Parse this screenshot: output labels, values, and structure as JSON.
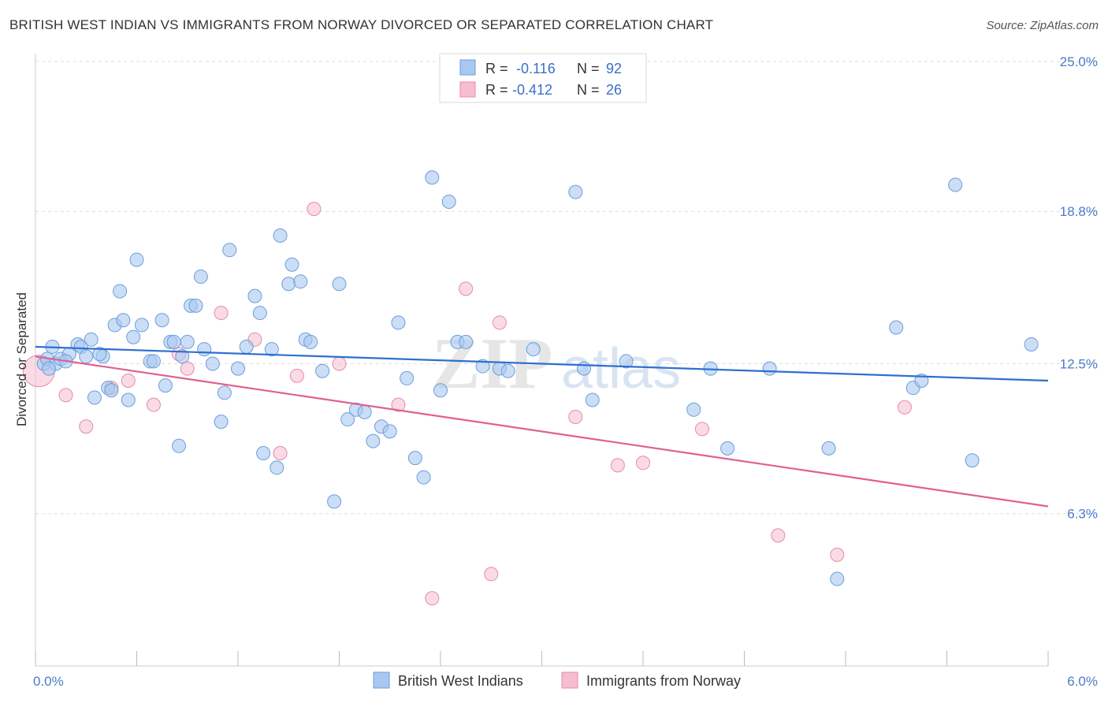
{
  "header": {
    "title": "BRITISH WEST INDIAN VS IMMIGRANTS FROM NORWAY DIVORCED OR SEPARATED CORRELATION CHART",
    "source": "Source: ZipAtlas.com"
  },
  "watermark": {
    "zip": "ZIP",
    "atlas": "atlas"
  },
  "colors": {
    "series1_fill": "#a9c8f0",
    "series1_stroke": "#6a9edc",
    "series1_line": "#2f6fd0",
    "series2_fill": "#f6bdd0",
    "series2_stroke": "#e58aaa",
    "series2_line": "#e0608e",
    "tick_text": "#4a7cc7",
    "grid": "#dddddd"
  },
  "chart_data": {
    "type": "scatter",
    "title": "BRITISH WEST INDIAN VS IMMIGRANTS FROM NORWAY DIVORCED OR SEPARATED CORRELATION CHART",
    "ylabel": "Divorced or Separated",
    "xlabel": "",
    "xlim": [
      0,
      6.0
    ],
    "ylim": [
      0,
      25.0
    ],
    "x_tick_labels": [
      {
        "value": 0,
        "label": "0.0%"
      },
      {
        "value": 6.0,
        "label": "6.0%"
      }
    ],
    "y_tick_labels": [
      {
        "value": 6.3,
        "label": "6.3%"
      },
      {
        "value": 12.5,
        "label": "12.5%"
      },
      {
        "value": 18.8,
        "label": "18.8%"
      },
      {
        "value": 25.0,
        "label": "25.0%"
      }
    ],
    "grid": true,
    "legend": {
      "placement": "top-center",
      "entries": [
        {
          "r_label": "R =",
          "r_value": "-0.116",
          "n_label": "N =",
          "n_value": "92"
        },
        {
          "r_label": "R =",
          "r_value": "-0.412",
          "n_label": "N =",
          "n_value": "26"
        }
      ]
    },
    "bottom_legend": [
      "British West Indians",
      "Immigrants from Norway"
    ],
    "series": [
      {
        "name": "British West Indians",
        "trend": {
          "x": [
            0,
            6.0
          ],
          "y": [
            13.2,
            11.8
          ]
        },
        "points": [
          [
            0.05,
            12.5
          ],
          [
            0.07,
            12.7
          ],
          [
            0.1,
            13.2
          ],
          [
            0.12,
            12.5
          ],
          [
            0.15,
            12.7
          ],
          [
            0.2,
            12.9
          ],
          [
            0.25,
            13.3
          ],
          [
            0.27,
            13.2
          ],
          [
            0.3,
            12.8
          ],
          [
            0.33,
            13.5
          ],
          [
            0.35,
            11.1
          ],
          [
            0.4,
            12.8
          ],
          [
            0.43,
            11.5
          ],
          [
            0.47,
            14.1
          ],
          [
            0.5,
            15.5
          ],
          [
            0.52,
            14.3
          ],
          [
            0.55,
            11.0
          ],
          [
            0.58,
            13.6
          ],
          [
            0.6,
            16.8
          ],
          [
            0.63,
            14.1
          ],
          [
            0.68,
            12.6
          ],
          [
            0.7,
            12.6
          ],
          [
            0.75,
            14.3
          ],
          [
            0.77,
            11.6
          ],
          [
            0.8,
            13.4
          ],
          [
            0.82,
            13.4
          ],
          [
            0.85,
            9.1
          ],
          [
            0.87,
            12.8
          ],
          [
            0.9,
            13.4
          ],
          [
            0.92,
            14.9
          ],
          [
            0.95,
            14.9
          ],
          [
            0.98,
            16.1
          ],
          [
            1.0,
            13.1
          ],
          [
            1.05,
            12.5
          ],
          [
            1.1,
            10.1
          ],
          [
            1.15,
            17.2
          ],
          [
            1.2,
            12.3
          ],
          [
            1.25,
            13.2
          ],
          [
            1.3,
            15.3
          ],
          [
            1.33,
            14.6
          ],
          [
            1.35,
            8.8
          ],
          [
            1.4,
            13.1
          ],
          [
            1.43,
            8.2
          ],
          [
            1.45,
            17.8
          ],
          [
            1.5,
            15.8
          ],
          [
            1.52,
            16.6
          ],
          [
            1.57,
            15.9
          ],
          [
            1.6,
            13.5
          ],
          [
            1.63,
            13.4
          ],
          [
            1.7,
            12.2
          ],
          [
            1.77,
            6.8
          ],
          [
            1.8,
            15.8
          ],
          [
            1.85,
            10.2
          ],
          [
            1.9,
            10.6
          ],
          [
            1.95,
            10.5
          ],
          [
            2.0,
            9.3
          ],
          [
            2.05,
            9.9
          ],
          [
            2.1,
            9.7
          ],
          [
            2.15,
            14.2
          ],
          [
            2.2,
            11.9
          ],
          [
            2.3,
            7.8
          ],
          [
            2.35,
            20.2
          ],
          [
            2.4,
            11.4
          ],
          [
            2.45,
            19.2
          ],
          [
            2.5,
            13.4
          ],
          [
            2.55,
            13.4
          ],
          [
            2.65,
            12.4
          ],
          [
            2.75,
            12.3
          ],
          [
            2.8,
            12.2
          ],
          [
            2.95,
            13.1
          ],
          [
            3.2,
            19.6
          ],
          [
            3.25,
            12.3
          ],
          [
            3.5,
            12.6
          ],
          [
            3.9,
            10.6
          ],
          [
            4.0,
            12.3
          ],
          [
            4.1,
            9.0
          ],
          [
            4.35,
            12.3
          ],
          [
            4.7,
            9.0
          ],
          [
            4.75,
            3.6
          ],
          [
            5.1,
            14.0
          ],
          [
            5.2,
            11.5
          ],
          [
            5.25,
            11.8
          ],
          [
            5.45,
            19.9
          ],
          [
            5.55,
            8.5
          ],
          [
            5.9,
            13.3
          ],
          [
            0.08,
            12.3
          ],
          [
            0.18,
            12.6
          ],
          [
            0.38,
            12.9
          ],
          [
            0.45,
            11.4
          ],
          [
            1.12,
            11.3
          ],
          [
            2.25,
            8.6
          ],
          [
            3.3,
            11.0
          ]
        ]
      },
      {
        "name": "Immigrants from Norway",
        "trend": {
          "x": [
            0,
            6.0
          ],
          "y": [
            12.8,
            6.6
          ]
        },
        "points": [
          [
            0.02,
            12.2
          ],
          [
            0.18,
            11.2
          ],
          [
            0.3,
            9.9
          ],
          [
            0.45,
            11.5
          ],
          [
            0.55,
            11.8
          ],
          [
            0.7,
            10.8
          ],
          [
            0.85,
            12.9
          ],
          [
            0.9,
            12.3
          ],
          [
            1.1,
            14.6
          ],
          [
            1.3,
            13.5
          ],
          [
            1.45,
            8.8
          ],
          [
            1.55,
            12.0
          ],
          [
            1.65,
            18.9
          ],
          [
            1.8,
            12.5
          ],
          [
            2.15,
            10.8
          ],
          [
            2.35,
            2.8
          ],
          [
            2.55,
            15.6
          ],
          [
            2.7,
            3.8
          ],
          [
            2.75,
            14.2
          ],
          [
            3.2,
            10.3
          ],
          [
            3.45,
            8.3
          ],
          [
            3.6,
            8.4
          ],
          [
            3.95,
            9.8
          ],
          [
            4.4,
            5.4
          ],
          [
            4.75,
            4.6
          ],
          [
            5.15,
            10.7
          ]
        ]
      }
    ]
  }
}
